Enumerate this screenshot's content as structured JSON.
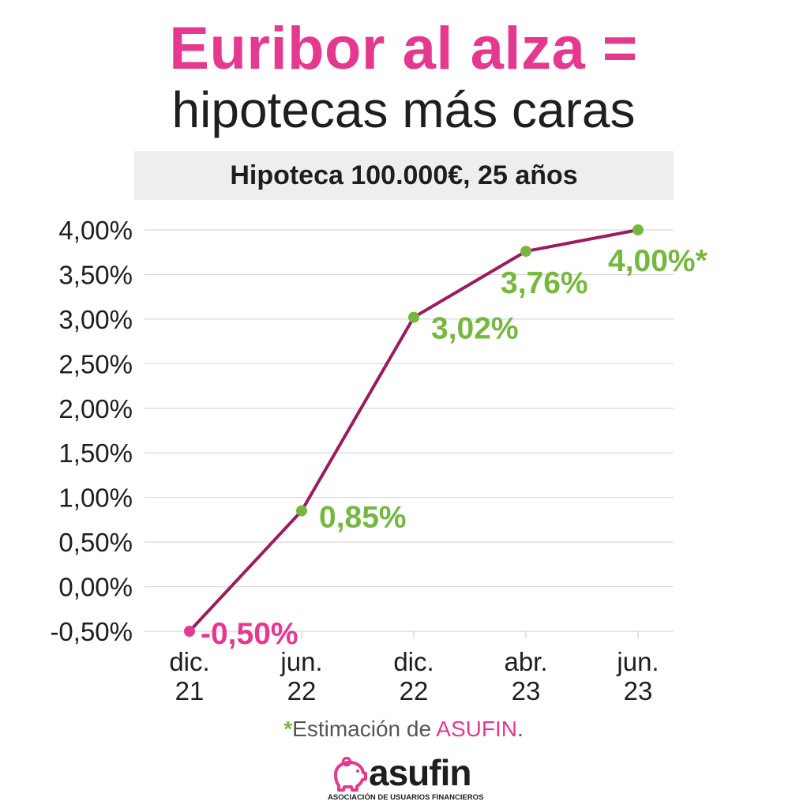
{
  "header": {
    "title": "Euribor al alza =",
    "subtitle": "hipotecas más caras",
    "caption": "Hipoteca 100.000€, 25 años"
  },
  "footnote": {
    "star": "*",
    "text": "Estimación de ",
    "brand": "ASUFIN",
    "end": "."
  },
  "logo": {
    "name": "asufin",
    "tagline": "ASOCIACIÓN DE USUARIOS FINANCIEROS",
    "icon": "piggy-bank-icon"
  },
  "colors": {
    "accent_pink": "#e5398f",
    "line": "#9b1b5f",
    "green": "#76b83f",
    "grid": "#d9d9d9",
    "text": "#1e1e1e"
  },
  "chart_data": {
    "type": "line",
    "title": "",
    "xlabel": "",
    "ylabel": "",
    "categories": [
      [
        "dic.",
        "21"
      ],
      [
        "jun.",
        "22"
      ],
      [
        "dic.",
        "22"
      ],
      [
        "abr.",
        "23"
      ],
      [
        "jun.",
        "23"
      ]
    ],
    "series": [
      {
        "values": [
          -0.5,
          0.85,
          3.02,
          3.76,
          4.0
        ]
      }
    ],
    "data_labels": [
      "-0,50%",
      "0,85%",
      "3,02%",
      "3,76%",
      "4,00%*"
    ],
    "yticks": [
      4.0,
      3.5,
      3.0,
      2.5,
      2.0,
      1.5,
      1.0,
      0.5,
      0.0,
      -0.5
    ],
    "ytick_labels": [
      "4,00%",
      "3,50%",
      "3,00%",
      "2,50%",
      "2,00%",
      "1,50%",
      "1,00%",
      "0,50%",
      "0,00%",
      "-0,50%"
    ],
    "ylim": [
      -0.5,
      4.0
    ],
    "grid": true,
    "legend": "none"
  }
}
